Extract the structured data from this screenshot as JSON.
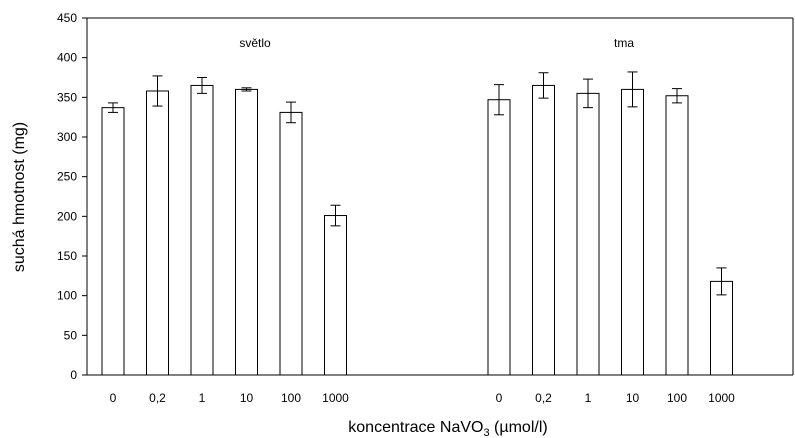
{
  "chart_data": {
    "type": "bar",
    "ylabel": "suchá hmotnost (mg)",
    "xlabel": {
      "main": "koncentrace NaVO",
      "subscript": "3",
      "unit": " (µmol/l)"
    },
    "ylim": [
      0,
      450
    ],
    "yticks": [
      0,
      50,
      100,
      150,
      200,
      250,
      300,
      350,
      400,
      450
    ],
    "grid": false,
    "bar_color": "#ffffff",
    "groups": [
      {
        "name": "světlo",
        "categories": [
          "0",
          "0,2",
          "1",
          "10",
          "100",
          "1000"
        ],
        "values": [
          337,
          358,
          365,
          360,
          331,
          201
        ],
        "errors": [
          6,
          19,
          10,
          2,
          13,
          13
        ]
      },
      {
        "name": "tma",
        "categories": [
          "0",
          "0,2",
          "1",
          "10",
          "100",
          "1000"
        ],
        "values": [
          347,
          365,
          355,
          360,
          352,
          118
        ],
        "errors": [
          19,
          16,
          18,
          22,
          9,
          17
        ]
      }
    ]
  }
}
